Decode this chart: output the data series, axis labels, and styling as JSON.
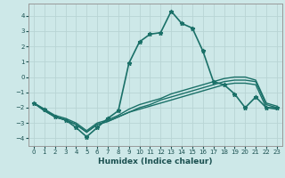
{
  "xlabel": "Humidex (Indice chaleur)",
  "ylabel": "",
  "xlim": [
    -0.5,
    23.5
  ],
  "ylim": [
    -4.5,
    4.8
  ],
  "xticks": [
    0,
    1,
    2,
    3,
    4,
    5,
    6,
    7,
    8,
    9,
    10,
    11,
    12,
    13,
    14,
    15,
    16,
    17,
    18,
    19,
    20,
    21,
    22,
    23
  ],
  "yticks": [
    -4,
    -3,
    -2,
    -1,
    0,
    1,
    2,
    3,
    4
  ],
  "background_color": "#cde8e8",
  "line_color": "#1a7068",
  "grid_color": "#b8d4d4",
  "series": [
    {
      "x": [
        0,
        1,
        2,
        3,
        4,
        5,
        6,
        7,
        8,
        9,
        10,
        11,
        12,
        13,
        14,
        15,
        16,
        17,
        18,
        19,
        20,
        21,
        22,
        23
      ],
      "y": [
        -1.7,
        -2.1,
        -2.6,
        -2.8,
        -3.3,
        -3.9,
        -3.3,
        -2.7,
        -2.2,
        0.9,
        2.3,
        2.8,
        2.9,
        4.3,
        3.5,
        3.2,
        1.7,
        -0.3,
        -0.5,
        -1.1,
        -2.0,
        -1.3,
        -2.0,
        -2.0
      ],
      "marker": "*",
      "markersize": 3.5,
      "linewidth": 1.2
    },
    {
      "x": [
        0,
        1,
        2,
        3,
        4,
        5,
        6,
        7,
        8,
        9,
        10,
        11,
        12,
        13,
        14,
        15,
        16,
        17,
        18,
        19,
        20,
        21,
        22,
        23
      ],
      "y": [
        -1.7,
        -2.2,
        -2.6,
        -2.8,
        -3.1,
        -3.6,
        -3.1,
        -2.9,
        -2.6,
        -2.3,
        -2.1,
        -1.9,
        -1.7,
        -1.5,
        -1.3,
        -1.1,
        -0.9,
        -0.7,
        -0.5,
        -0.4,
        -0.4,
        -0.5,
        -2.0,
        -2.1
      ],
      "marker": null,
      "linewidth": 1.0
    },
    {
      "x": [
        0,
        1,
        2,
        3,
        4,
        5,
        6,
        7,
        8,
        9,
        10,
        11,
        12,
        13,
        14,
        15,
        16,
        17,
        18,
        19,
        20,
        21,
        22,
        23
      ],
      "y": [
        -1.7,
        -2.2,
        -2.6,
        -2.8,
        -3.1,
        -3.6,
        -3.1,
        -2.9,
        -2.6,
        -2.3,
        -2.0,
        -1.8,
        -1.5,
        -1.3,
        -1.1,
        -0.9,
        -0.7,
        -0.5,
        -0.3,
        -0.2,
        -0.2,
        -0.3,
        -1.8,
        -2.0
      ],
      "marker": null,
      "linewidth": 1.0
    },
    {
      "x": [
        0,
        1,
        2,
        3,
        4,
        5,
        6,
        7,
        8,
        9,
        10,
        11,
        12,
        13,
        14,
        15,
        16,
        17,
        18,
        19,
        20,
        21,
        22,
        23
      ],
      "y": [
        -1.7,
        -2.1,
        -2.5,
        -2.7,
        -3.0,
        -3.5,
        -3.0,
        -2.8,
        -2.5,
        -2.1,
        -1.8,
        -1.6,
        -1.4,
        -1.1,
        -0.9,
        -0.7,
        -0.5,
        -0.3,
        -0.1,
        0.0,
        0.0,
        -0.2,
        -1.7,
        -1.9
      ],
      "marker": null,
      "linewidth": 1.0
    }
  ]
}
